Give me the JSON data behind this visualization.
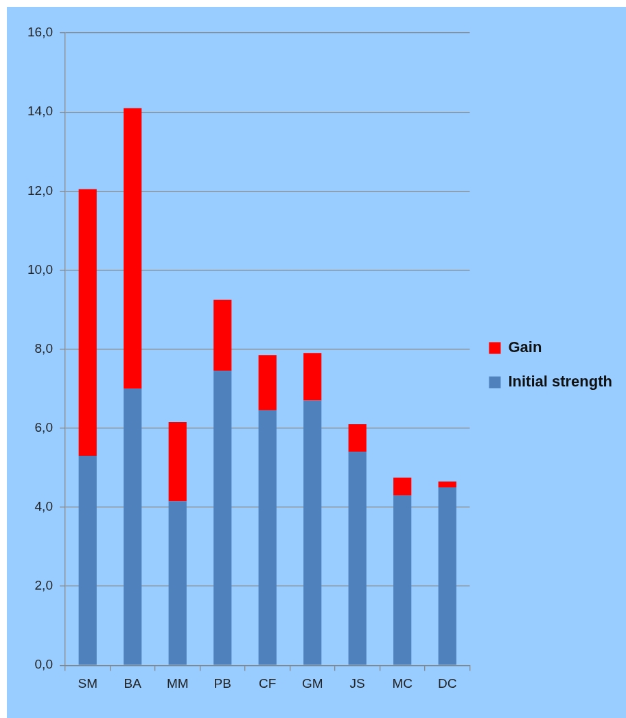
{
  "chart_data": {
    "type": "bar",
    "stacked": true,
    "categories": [
      "SM",
      "BA",
      "MM",
      "PB",
      "CF",
      "GM",
      "JS",
      "MC",
      "DC"
    ],
    "series": [
      {
        "name": "Initial strength",
        "color": "#4f81bd",
        "values": [
          5.3,
          7.0,
          4.15,
          7.45,
          6.45,
          6.7,
          5.4,
          4.3,
          4.5
        ]
      },
      {
        "name": "Gain",
        "color": "#ff0000",
        "values": [
          6.75,
          7.1,
          2.0,
          1.8,
          1.4,
          1.2,
          0.7,
          0.45,
          0.15
        ]
      }
    ],
    "ylim": [
      0,
      16
    ],
    "yticks": [
      {
        "value": 0,
        "label": "0,0"
      },
      {
        "value": 2,
        "label": "2,0"
      },
      {
        "value": 4,
        "label": "4,0"
      },
      {
        "value": 6,
        "label": "6,0"
      },
      {
        "value": 8,
        "label": "8,0"
      },
      {
        "value": 10,
        "label": "10,0"
      },
      {
        "value": 12,
        "label": "12,0"
      },
      {
        "value": 14,
        "label": "14,0"
      },
      {
        "value": 16,
        "label": "16,0"
      }
    ],
    "grid": "y",
    "legend": "right"
  }
}
